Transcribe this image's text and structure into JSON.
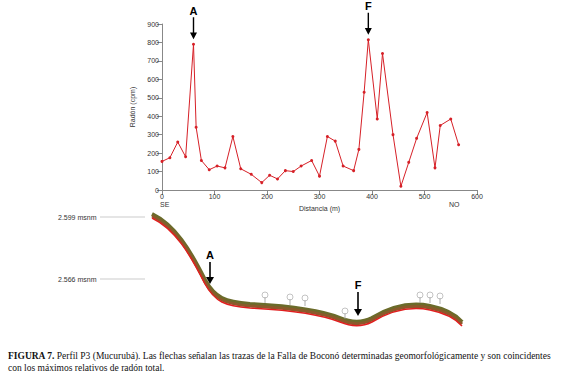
{
  "chart_data": {
    "type": "line",
    "x_label": "Distancia (m)",
    "y_label": "Radón (cpm)",
    "x": [
      0,
      15,
      30,
      45,
      60,
      65,
      75,
      90,
      105,
      120,
      135,
      150,
      170,
      190,
      205,
      220,
      235,
      250,
      265,
      285,
      300,
      315,
      330,
      345,
      365,
      375,
      385,
      393,
      410,
      420,
      440,
      455,
      470,
      485,
      505,
      520,
      530,
      550,
      565
    ],
    "values": [
      155,
      175,
      260,
      180,
      790,
      340,
      160,
      110,
      130,
      120,
      290,
      115,
      85,
      40,
      80,
      60,
      105,
      100,
      130,
      160,
      75,
      290,
      265,
      130,
      105,
      220,
      530,
      815,
      385,
      740,
      300,
      20,
      150,
      280,
      420,
      120,
      350,
      385,
      245
    ],
    "color": "#d62027",
    "marker": "circle",
    "xlim": [
      0,
      600
    ],
    "xticks": [
      0,
      100,
      200,
      300,
      400,
      500,
      600
    ],
    "ylim": [
      0,
      900
    ],
    "yticks": [
      0,
      100,
      200,
      300,
      400,
      500,
      600,
      700,
      800,
      900
    ],
    "grid": false,
    "annotations": [
      {
        "text": "A",
        "x": 60,
        "y": 790
      },
      {
        "text": "F",
        "x": 393,
        "y": 815
      }
    ],
    "direction_labels": [
      "SE",
      "NO"
    ]
  },
  "profile": {
    "elevation_labels": [
      "2.599 msnm",
      "2.566 msnm"
    ],
    "markers": [
      "A",
      "F"
    ]
  },
  "caption": {
    "label": "FIGURA 7.",
    "text": "Perfil P3 (Mucurubá). Las flechas señalan las trazas de la Falla de Boconó determinadas geomorfológicamente y son coincidentes con los máximos relativos de radón total."
  }
}
